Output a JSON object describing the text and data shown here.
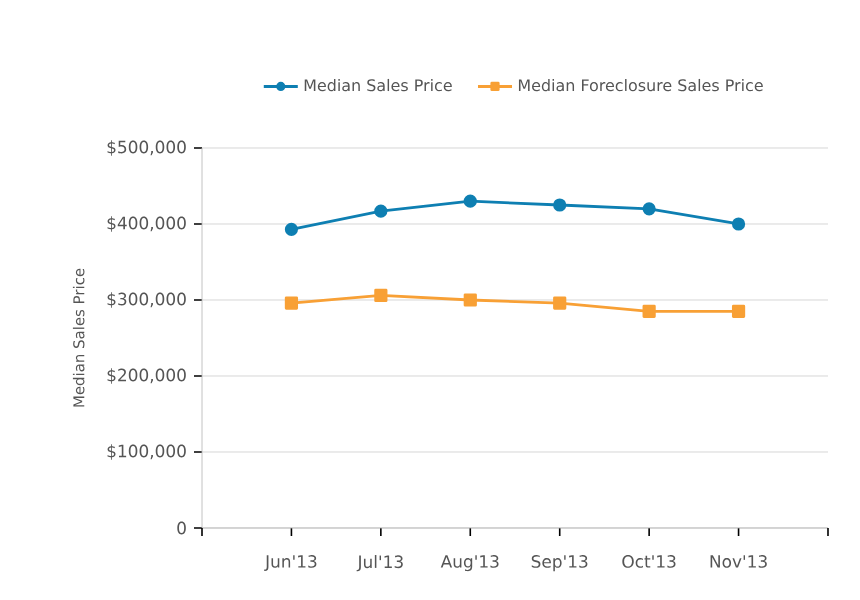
{
  "chart_data": {
    "type": "line",
    "ylabel": "Median Sales Price",
    "categories": [
      "Jun'13",
      "Jul'13",
      "Aug'13",
      "Sep'13",
      "Oct'13",
      "Nov'13"
    ],
    "series": [
      {
        "name": "Median Sales Price",
        "color": "#0e7fb2",
        "marker": "circle",
        "values": [
          393000,
          417000,
          430000,
          425000,
          420000,
          400000
        ]
      },
      {
        "name": "Median Foreclosure Sales Price",
        "color": "#f8a035",
        "marker": "square",
        "values": [
          296000,
          306000,
          300000,
          296000,
          285000,
          285000
        ]
      }
    ],
    "ylim": [
      0,
      500000
    ],
    "yticks": [
      {
        "value": 0,
        "label": "0"
      },
      {
        "value": 100000,
        "label": "$100,000"
      },
      {
        "value": 200000,
        "label": "$200,000"
      },
      {
        "value": 300000,
        "label": "$300,000"
      },
      {
        "value": 400000,
        "label": "$400,000"
      },
      {
        "value": 500000,
        "label": "$500,000"
      }
    ],
    "grid": "y",
    "legend": "top",
    "line_style": "solid"
  }
}
